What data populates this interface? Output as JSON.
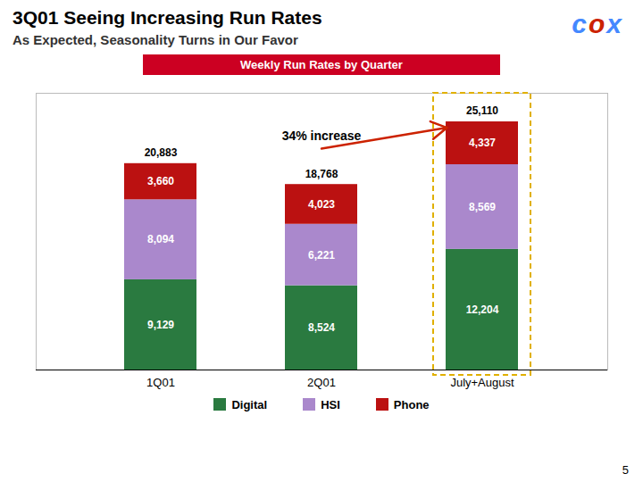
{
  "chart_data": {
    "type": "bar",
    "stacked": true,
    "title": "3Q01 Seeing Increasing Run Rates",
    "subtitle": [
      "As Expected, Seasonality Turns in Our Favor",
      "Weekly Run Rates by Quarter"
    ],
    "categories": [
      "1Q01",
      "2Q01",
      "July+August"
    ],
    "series": [
      {
        "name": "Digital",
        "color": "#2a7a40",
        "values": [
          9129,
          8524,
          12204
        ],
        "value_labels": [
          "9,129",
          "8,524",
          "12,204"
        ]
      },
      {
        "name": "HSI",
        "color": "#aa88cc",
        "values": [
          8094,
          6221,
          8569
        ],
        "value_labels": [
          "8,094",
          "6,221",
          "8,569"
        ]
      },
      {
        "name": "Phone",
        "color": "#bb1111",
        "values": [
          3660,
          4023,
          4337
        ],
        "value_labels": [
          "3,660",
          "4,023",
          "4,337"
        ]
      }
    ],
    "totals": {
      "values": [
        20883,
        18768,
        25110
      ],
      "value_labels": [
        "20,883",
        "18,768",
        "25,110"
      ]
    },
    "annotations": [
      {
        "text": "34% increase",
        "target": "July+August"
      }
    ],
    "ylim": [
      0,
      28000
    ],
    "yticks": [],
    "tick_labels": "x",
    "data_labels": true,
    "legend": "bottom",
    "grid": false,
    "page_number": "5",
    "logo": "cox"
  }
}
